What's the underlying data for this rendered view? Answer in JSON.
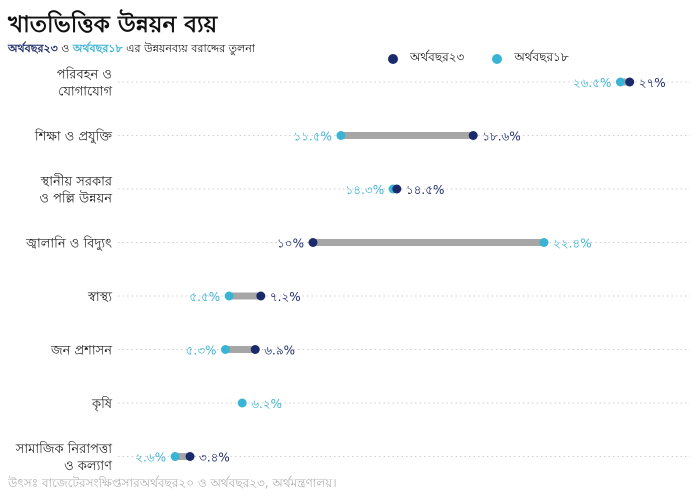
{
  "header": {
    "title": "খাতভিত্তিক উন্নয়ন ব্যয়",
    "subtitle_series1": "অর্থবছর২৩",
    "subtitle_and": "ও",
    "subtitle_series2": "অর্থবছর১৮",
    "subtitle_rest": "এর উন্নয়নব্যয় বরাদ্দের তুলনা"
  },
  "legend": {
    "series1": "অর্থবছর২৩",
    "series2": "অর্থবছর১৮"
  },
  "source": "উৎসঃ বাজেটেরসংক্ষিপ্তসারঅর্থবছর২০ ও অর্থবছর২৩, অর্থমন্ত্রণালয়।",
  "colors": {
    "fy23": "#1b2a6b",
    "fy18": "#3ab4d4",
    "connector": "#a6a6a6",
    "grid": "#d0d0d0"
  },
  "chart_data": {
    "type": "dumbbell",
    "title": "খাতভিত্তিক উন্নয়ন ব্যয়",
    "categories": [
      [
        "পরিবহন ও",
        "যোগাযোগ"
      ],
      [
        "শিক্ষা ও প্রযুক্তি"
      ],
      [
        "স্থানীয় সরকার",
        "ও পল্লি উন্নয়ন"
      ],
      [
        "জ্বালানি ও বিদ্যুৎ"
      ],
      [
        "স্বাস্থ্য"
      ],
      [
        "জন প্রশাসন"
      ],
      [
        "কৃষি"
      ],
      [
        "সামাজিক নিরাপত্তা",
        "ও কল্যাণ"
      ]
    ],
    "series": [
      {
        "name": "অর্থবছর২৩",
        "values": [
          27,
          18.6,
          14.5,
          10,
          7.2,
          6.9,
          6.2,
          3.4
        ],
        "labels": [
          "২৭%",
          "১৮.৬%",
          "১৪.৫%",
          "১০%",
          "৭.২%",
          "৬.৯%",
          "",
          "৩.৪%"
        ]
      },
      {
        "name": "অর্থবছর১৮",
        "values": [
          26.5,
          11.5,
          14.3,
          22.4,
          5.5,
          5.3,
          6.2,
          2.6
        ],
        "labels": [
          "২৬.৫%",
          "১১.৫%",
          "১৪.৩%",
          "২২.৪%",
          "৫.৫%",
          "৫.৩%",
          "৬.২%",
          "২.৬%"
        ]
      }
    ],
    "xlim": [
      0,
      27.8
    ],
    "grid": "dotted horizontal"
  }
}
